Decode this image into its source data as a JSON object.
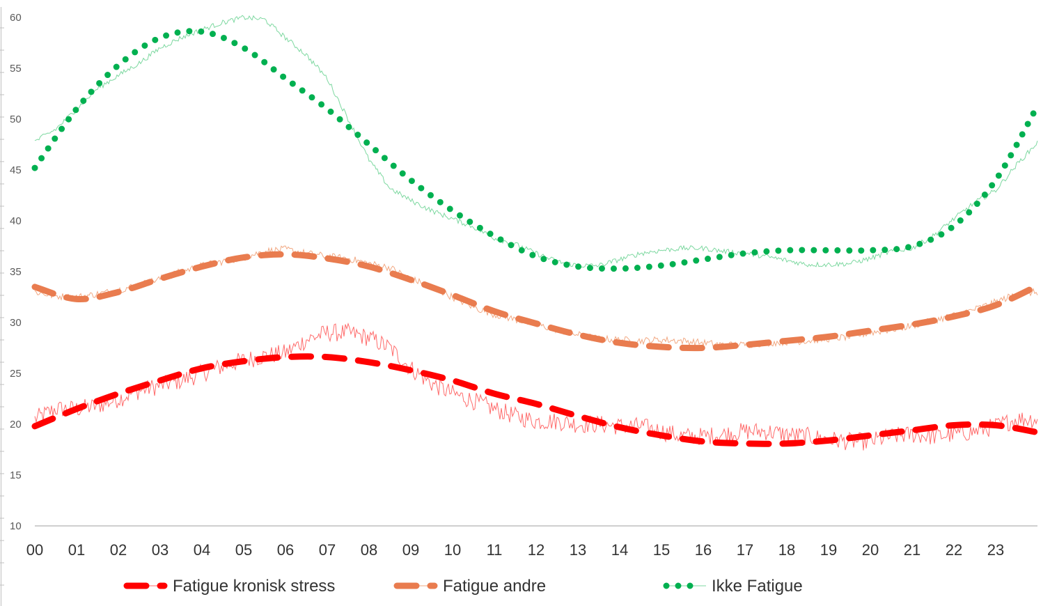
{
  "chart_data": {
    "type": "line",
    "title": "",
    "xlabel": "",
    "ylabel": "",
    "ylim": [
      10,
      60
    ],
    "yticks": [
      10,
      15,
      20,
      25,
      30,
      35,
      40,
      45,
      50,
      55,
      60
    ],
    "categories": [
      "00",
      "01",
      "02",
      "03",
      "04",
      "05",
      "06",
      "07",
      "08",
      "09",
      "10",
      "11",
      "12",
      "13",
      "14",
      "15",
      "16",
      "17",
      "18",
      "19",
      "20",
      "21",
      "22",
      "23"
    ],
    "grid": false,
    "legend_position": "bottom",
    "series": [
      {
        "name": "Fatigue kronisk stress",
        "color": "#ff0000",
        "raw_color": "#ff6b6b",
        "trend_style": "dashed",
        "raw": [
          [
            0,
            20.5
          ],
          [
            0.5,
            21.5
          ],
          [
            1,
            21.5
          ],
          [
            1.5,
            21.8
          ],
          [
            2,
            22.5
          ],
          [
            2.5,
            23.3
          ],
          [
            3,
            23.8
          ],
          [
            3.5,
            24.3
          ],
          [
            4,
            25
          ],
          [
            4.5,
            25.7
          ],
          [
            5,
            26.3
          ],
          [
            5.5,
            26.7
          ],
          [
            6,
            27
          ],
          [
            6.5,
            28.3
          ],
          [
            7,
            29
          ],
          [
            7.5,
            29
          ],
          [
            8,
            28.5
          ],
          [
            8.5,
            27.5
          ],
          [
            9,
            25.5
          ],
          [
            9.5,
            24
          ],
          [
            10,
            23
          ],
          [
            10.5,
            22.3
          ],
          [
            11,
            21.5
          ],
          [
            11.5,
            20.8
          ],
          [
            12,
            20.3
          ],
          [
            12.5,
            20.3
          ],
          [
            13,
            20
          ],
          [
            13.5,
            20
          ],
          [
            14,
            19.8
          ],
          [
            14.5,
            19.8
          ],
          [
            15,
            19.3
          ],
          [
            15.5,
            18.8
          ],
          [
            16,
            18.8
          ],
          [
            16.5,
            19
          ],
          [
            17,
            19.3
          ],
          [
            17.5,
            19.3
          ],
          [
            18,
            19
          ],
          [
            18.5,
            18.8
          ],
          [
            19,
            18.5
          ],
          [
            19.5,
            18.3
          ],
          [
            20,
            18.3
          ],
          [
            20.5,
            18.8
          ],
          [
            21,
            19
          ],
          [
            21.5,
            18.8
          ],
          [
            22,
            19
          ],
          [
            22.5,
            19.3
          ],
          [
            23,
            19.8
          ],
          [
            23.5,
            20.5
          ],
          [
            24,
            20.5
          ]
        ],
        "trend": [
          [
            0,
            19.8
          ],
          [
            1,
            21.5
          ],
          [
            2,
            23
          ],
          [
            3,
            24.3
          ],
          [
            4,
            25.5
          ],
          [
            5,
            26.2
          ],
          [
            6,
            26.6
          ],
          [
            7,
            26.6
          ],
          [
            8,
            26.1
          ],
          [
            9,
            25.3
          ],
          [
            10,
            24.3
          ],
          [
            11,
            23
          ],
          [
            12,
            22
          ],
          [
            13,
            20.8
          ],
          [
            14,
            19.7
          ],
          [
            15,
            18.9
          ],
          [
            16,
            18.3
          ],
          [
            17,
            18.1
          ],
          [
            18,
            18.1
          ],
          [
            19,
            18.4
          ],
          [
            20,
            18.9
          ],
          [
            21,
            19.4
          ],
          [
            22,
            19.9
          ],
          [
            23,
            19.9
          ],
          [
            24,
            19.2
          ]
        ]
      },
      {
        "name": "Fatigue andre",
        "color": "#e97c4f",
        "raw_color": "#f2a882",
        "trend_style": "dashed",
        "raw": [
          [
            0,
            33
          ],
          [
            0.5,
            32.6
          ],
          [
            1,
            32.5
          ],
          [
            1.5,
            32.8
          ],
          [
            2,
            33.2
          ],
          [
            2.5,
            33.7
          ],
          [
            3,
            34.3
          ],
          [
            3.5,
            35
          ],
          [
            4,
            35.6
          ],
          [
            4.5,
            36
          ],
          [
            5,
            36.4
          ],
          [
            5.5,
            37
          ],
          [
            6,
            37.2
          ],
          [
            6.5,
            36.8
          ],
          [
            7,
            36.5
          ],
          [
            7.5,
            36.3
          ],
          [
            8,
            35.8
          ],
          [
            8.5,
            35.4
          ],
          [
            9,
            34.3
          ],
          [
            9.5,
            33.5
          ],
          [
            10,
            32.5
          ],
          [
            10.5,
            31.5
          ],
          [
            11,
            30.8
          ],
          [
            11.5,
            30.3
          ],
          [
            12,
            29.8
          ],
          [
            12.5,
            29.3
          ],
          [
            13,
            28.8
          ],
          [
            13.5,
            28.4
          ],
          [
            14,
            28.3
          ],
          [
            14.5,
            28.2
          ],
          [
            15,
            28.3
          ],
          [
            15.5,
            28.2
          ],
          [
            16,
            28
          ],
          [
            16.5,
            27.8
          ],
          [
            17,
            27.8
          ],
          [
            17.5,
            28
          ],
          [
            18,
            28.1
          ],
          [
            18.5,
            28.2
          ],
          [
            19,
            28.4
          ],
          [
            19.5,
            28.6
          ],
          [
            20,
            29
          ],
          [
            20.5,
            29.3
          ],
          [
            21,
            29.7
          ],
          [
            21.5,
            30.2
          ],
          [
            22,
            30.7
          ],
          [
            22.5,
            31.3
          ],
          [
            23,
            32
          ],
          [
            23.5,
            32.8
          ],
          [
            24,
            33
          ]
        ],
        "trend": [
          [
            0,
            33.5
          ],
          [
            1,
            32.3
          ],
          [
            2,
            33
          ],
          [
            3,
            34.3
          ],
          [
            4,
            35.5
          ],
          [
            5,
            36.4
          ],
          [
            6,
            36.7
          ],
          [
            7,
            36.3
          ],
          [
            8,
            35.5
          ],
          [
            9,
            34.2
          ],
          [
            10,
            32.7
          ],
          [
            11,
            31.1
          ],
          [
            12,
            29.9
          ],
          [
            13,
            28.8
          ],
          [
            14,
            28
          ],
          [
            15,
            27.6
          ],
          [
            16,
            27.5
          ],
          [
            17,
            27.8
          ],
          [
            18,
            28.2
          ],
          [
            19,
            28.6
          ],
          [
            20,
            29.2
          ],
          [
            21,
            29.8
          ],
          [
            22,
            30.6
          ],
          [
            23,
            31.7
          ],
          [
            24,
            33.6
          ]
        ]
      },
      {
        "name": "Ikke Fatigue",
        "color": "#00b050",
        "raw_color": "#7dd8a0",
        "trend_style": "dotted",
        "raw": [
          [
            0,
            47.8
          ],
          [
            0.5,
            49
          ],
          [
            1,
            51
          ],
          [
            1.5,
            53
          ],
          [
            2,
            54.3
          ],
          [
            2.5,
            55.5
          ],
          [
            3,
            57
          ],
          [
            3.5,
            58
          ],
          [
            4,
            58.8
          ],
          [
            4.5,
            59.5
          ],
          [
            5,
            60
          ],
          [
            5.5,
            59.8
          ],
          [
            6,
            58
          ],
          [
            6.5,
            56.3
          ],
          [
            7,
            54
          ],
          [
            7.5,
            50
          ],
          [
            8,
            46
          ],
          [
            8.5,
            43.2
          ],
          [
            9,
            42
          ],
          [
            9.5,
            41
          ],
          [
            10,
            40.2
          ],
          [
            10.5,
            39.4
          ],
          [
            11,
            38.3
          ],
          [
            11.5,
            37.7
          ],
          [
            12,
            36.8
          ],
          [
            12.5,
            36
          ],
          [
            13,
            35.6
          ],
          [
            13.5,
            35.6
          ],
          [
            14,
            36.2
          ],
          [
            14.5,
            36.8
          ],
          [
            15,
            37.1
          ],
          [
            15.5,
            37.3
          ],
          [
            16,
            37.3
          ],
          [
            16.5,
            37
          ],
          [
            17,
            36.8
          ],
          [
            17.5,
            36.5
          ],
          [
            18,
            36.1
          ],
          [
            18.5,
            35.7
          ],
          [
            19,
            35.7
          ],
          [
            19.5,
            35.8
          ],
          [
            20,
            36.3
          ],
          [
            20.5,
            37
          ],
          [
            21,
            37.3
          ],
          [
            21.5,
            38.5
          ],
          [
            22,
            40.2
          ],
          [
            22.5,
            41.8
          ],
          [
            23,
            43
          ],
          [
            23.5,
            45.5
          ],
          [
            24,
            47.7
          ]
        ],
        "trend": [
          [
            0,
            45.2
          ],
          [
            1,
            51
          ],
          [
            2,
            55.3
          ],
          [
            3,
            58
          ],
          [
            4,
            58.6
          ],
          [
            5,
            57
          ],
          [
            6,
            54
          ],
          [
            7,
            51
          ],
          [
            8,
            47.5
          ],
          [
            9,
            44
          ],
          [
            10,
            41
          ],
          [
            11,
            38.5
          ],
          [
            12,
            36.5
          ],
          [
            13,
            35.5
          ],
          [
            14,
            35.3
          ],
          [
            15,
            35.6
          ],
          [
            16,
            36.2
          ],
          [
            17,
            36.8
          ],
          [
            18,
            37.1
          ],
          [
            19,
            37.1
          ],
          [
            20,
            37.1
          ],
          [
            21,
            37.5
          ],
          [
            22,
            39.5
          ],
          [
            23,
            44
          ],
          [
            24,
            51.3
          ]
        ]
      }
    ]
  }
}
